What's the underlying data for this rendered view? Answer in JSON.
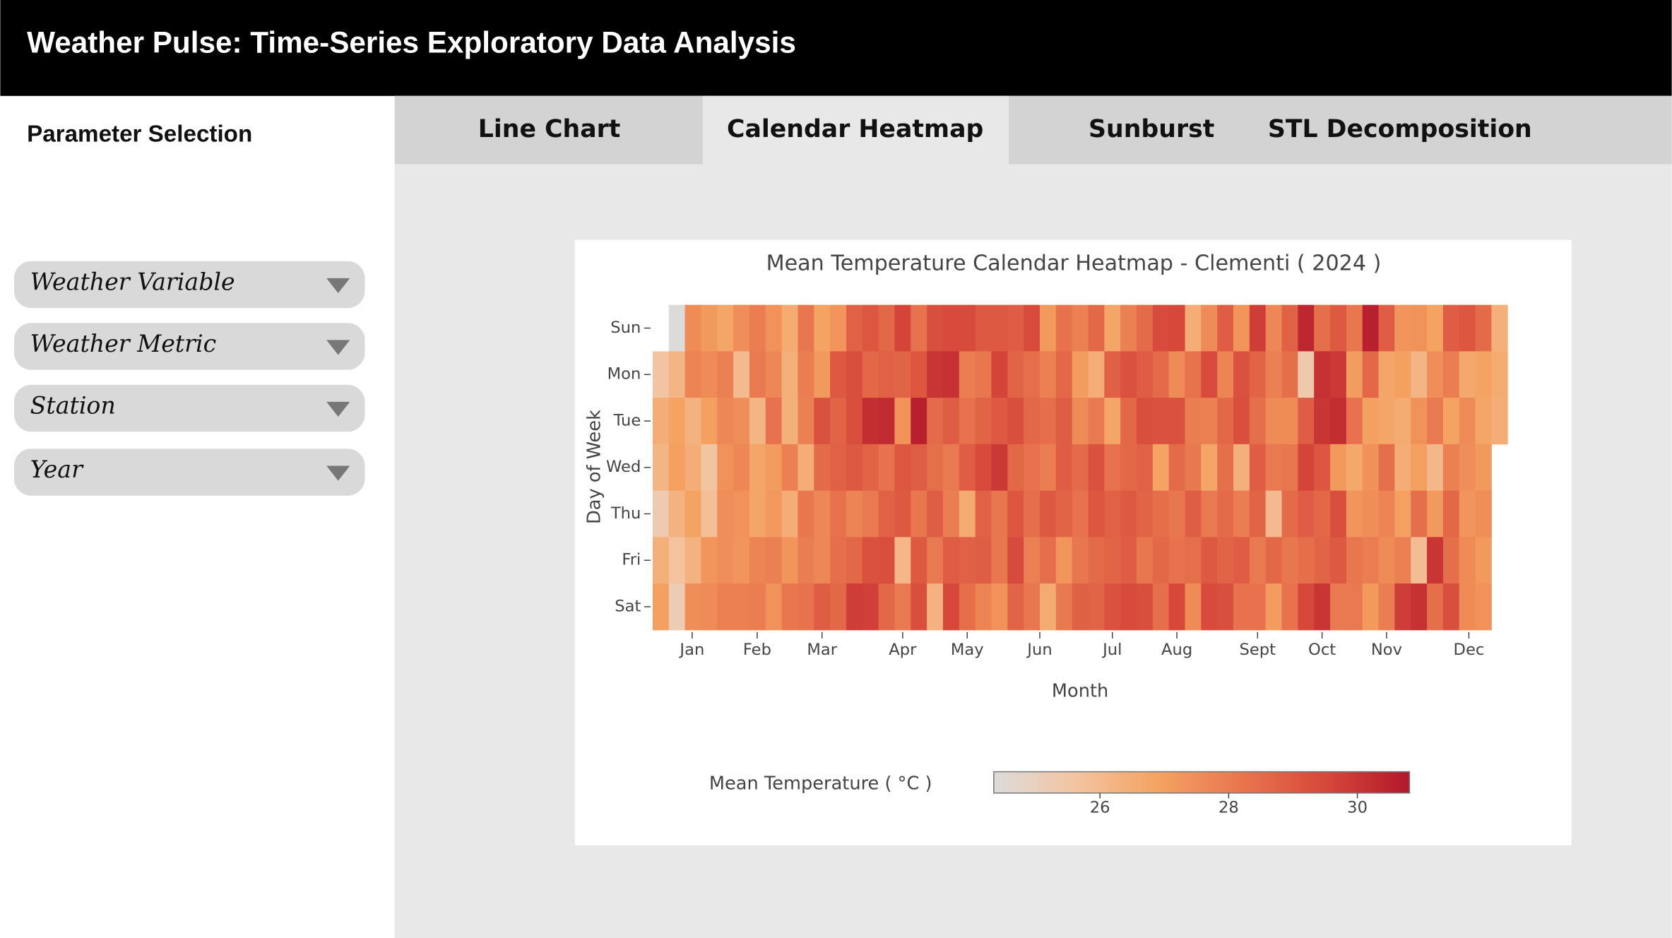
{
  "header": {
    "title": "Weather Pulse: Time-Series Exploratory Data Analysis"
  },
  "sidebar": {
    "title": "Parameter Selection",
    "dropdowns": [
      "Weather Variable",
      "Weather Metric",
      "Station",
      "Year"
    ]
  },
  "tabs": {
    "items": [
      "Line Chart",
      "Calendar Heatmap",
      "Sunburst",
      "STL Decomposition"
    ],
    "active": 1
  },
  "chart_data": {
    "type": "heatmap",
    "title": "Mean Temperature Calendar Heatmap - Clementi ( 2024 )",
    "xlabel": "Month",
    "ylabel": "Day of Week",
    "y_categories": [
      "Sun",
      "Mon",
      "Tue",
      "Wed",
      "Thu",
      "Fri",
      "Sat"
    ],
    "xlim": [
      0,
      53
    ],
    "xticks": [
      {
        "value": 2.45,
        "label": "Jan"
      },
      {
        "value": 6.48,
        "label": "Feb"
      },
      {
        "value": 10.5,
        "label": "Mar"
      },
      {
        "value": 15.5,
        "label": "Apr"
      },
      {
        "value": 19.5,
        "label": "May"
      },
      {
        "value": 24.0,
        "label": "Jun"
      },
      {
        "value": 28.5,
        "label": "Jul"
      },
      {
        "value": 32.5,
        "label": "Aug"
      },
      {
        "value": 37.5,
        "label": "Sept"
      },
      {
        "value": 41.5,
        "label": "Oct"
      },
      {
        "value": 45.5,
        "label": "Nov"
      },
      {
        "value": 50.6,
        "label": "Dec"
      }
    ],
    "z": [
      [
        null,
        24.4,
        27.6,
        27.2,
        26.8,
        27.5,
        28.0,
        27.4,
        26.6,
        28.2,
        26.9,
        27.3,
        28.8,
        29.1,
        28.6,
        29.6,
        28.3,
        29.3,
        29.4,
        29.4,
        29.0,
        29.0,
        28.9,
        29.4,
        27.2,
        28.3,
        27.9,
        28.6,
        26.8,
        27.9,
        28.5,
        29.4,
        29.5,
        26.5,
        27.6,
        28.9,
        27.3,
        29.8,
        27.7,
        28.8,
        30.4,
        28.4,
        29.0,
        28.2,
        30.6,
        28.9,
        27.3,
        27.4,
        26.9,
        28.9,
        29.1,
        28.5,
        26.4
      ],
      [
        25.6,
        26.2,
        27.8,
        27.6,
        27.9,
        26.0,
        28.1,
        27.7,
        26.4,
        28.0,
        27.2,
        29.0,
        29.3,
        28.6,
        28.8,
        28.7,
        29.1,
        30.0,
        30.1,
        28.0,
        28.2,
        29.6,
        28.7,
        28.4,
        27.9,
        28.6,
        27.1,
        26.5,
        28.8,
        29.2,
        28.9,
        28.5,
        27.6,
        28.3,
        29.4,
        27.8,
        29.2,
        28.7,
        27.9,
        28.4,
        25.4,
        30.1,
        29.9,
        27.1,
        28.6,
        26.8,
        27.0,
        26.2,
        27.5,
        28.0,
        26.7,
        26.9,
        26.6
      ],
      [
        26.5,
        26.9,
        26.3,
        27.0,
        27.7,
        27.5,
        26.2,
        28.3,
        26.4,
        27.9,
        29.2,
        28.7,
        29.3,
        30.2,
        30.3,
        27.4,
        30.6,
        28.5,
        28.9,
        28.3,
        28.7,
        29.0,
        29.3,
        28.6,
        28.4,
        28.9,
        27.6,
        28.1,
        26.8,
        28.6,
        29.3,
        29.2,
        29.2,
        28.0,
        27.9,
        28.6,
        29.3,
        28.4,
        27.6,
        27.6,
        28.9,
        30.0,
        30.2,
        28.3,
        27.0,
        26.8,
        26.6,
        27.4,
        28.1,
        26.9,
        27.6,
        26.8,
        26.5
      ],
      [
        26.2,
        27.0,
        26.5,
        25.6,
        27.4,
        27.7,
        26.8,
        27.1,
        27.9,
        26.5,
        28.5,
        28.8,
        29.0,
        28.7,
        28.3,
        29.1,
        28.9,
        28.4,
        28.1,
        28.9,
        29.4,
        29.9,
        28.6,
        28.3,
        28.0,
        28.9,
        28.5,
        29.2,
        28.3,
        28.6,
        28.8,
        26.9,
        28.5,
        28.1,
        26.8,
        28.4,
        26.4,
        28.9,
        28.1,
        28.2,
        29.6,
        29.1,
        27.2,
        26.7,
        27.4,
        28.4,
        26.5,
        27.0,
        26.1,
        27.9,
        27.5,
        27.2,
        null
      ],
      [
        25.3,
        26.3,
        26.9,
        25.8,
        27.5,
        27.4,
        26.8,
        27.2,
        26.5,
        28.2,
        27.7,
        28.3,
        27.8,
        28.1,
        28.8,
        29.0,
        28.2,
        28.9,
        28.0,
        26.6,
        28.8,
        28.2,
        29.1,
        28.4,
        29.0,
        28.7,
        28.3,
        29.1,
        28.8,
        29.0,
        28.7,
        28.4,
        28.2,
        28.9,
        28.1,
        28.5,
        28.0,
        28.7,
        26.0,
        28.5,
        28.9,
        28.6,
        29.3,
        27.3,
        27.5,
        27.8,
        27.0,
        28.4,
        27.2,
        28.6,
        27.3,
        27.5,
        null
      ],
      [
        26.4,
        25.7,
        26.3,
        27.3,
        27.5,
        27.3,
        27.8,
        27.9,
        27.3,
        28.0,
        27.7,
        28.4,
        28.6,
        29.2,
        29.3,
        26.1,
        29.0,
        28.1,
        28.9,
        28.8,
        28.9,
        28.2,
        29.4,
        27.9,
        28.4,
        27.3,
        28.2,
        28.5,
        28.7,
        28.9,
        28.2,
        28.6,
        28.3,
        28.4,
        29.0,
        28.7,
        28.9,
        28.1,
        28.6,
        28.2,
        28.4,
        28.7,
        29.0,
        28.2,
        28.0,
        27.6,
        27.9,
        25.9,
        30.0,
        28.4,
        27.6,
        27.2,
        null
      ],
      [
        27.0,
        25.2,
        27.5,
        27.6,
        27.9,
        27.9,
        28.0,
        27.4,
        28.2,
        28.3,
        28.9,
        28.6,
        29.8,
        29.7,
        28.6,
        28.1,
        29.3,
        26.3,
        29.5,
        28.4,
        27.8,
        27.4,
        28.7,
        28.2,
        26.6,
        28.1,
        28.8,
        28.7,
        29.2,
        29.4,
        29.3,
        28.4,
        29.5,
        27.6,
        29.4,
        29.3,
        28.3,
        28.3,
        27.1,
        28.3,
        29.5,
        30.0,
        28.1,
        28.1,
        27.2,
        28.0,
        29.8,
        30.1,
        28.4,
        29.3,
        27.6,
        27.4,
        null
      ]
    ],
    "colorbar_title": "Mean Temperature ( °C )",
    "zlim": [
      24.35,
      30.81
    ],
    "zticks": [
      26,
      28,
      30
    ],
    "colors": [
      "#dcdcdc",
      "#f4c3a0",
      "#f4a261",
      "#e8754e",
      "#d6473a",
      "#b2182b"
    ]
  }
}
